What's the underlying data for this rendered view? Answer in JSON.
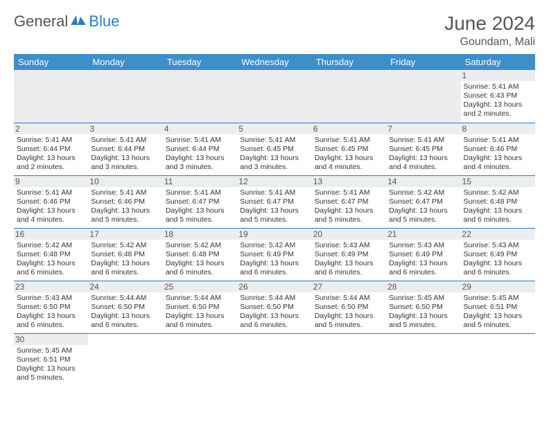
{
  "logo": {
    "general": "General",
    "blue": "Blue"
  },
  "title": "June 2024",
  "location": "Goundam, Mali",
  "colors": {
    "header_bg": "#3d8fc7",
    "header_text": "#ffffff",
    "daynum_bg": "#ecedee",
    "border": "#2d7dc0",
    "title_color": "#555555"
  },
  "weekdays": [
    "Sunday",
    "Monday",
    "Tuesday",
    "Wednesday",
    "Thursday",
    "Friday",
    "Saturday"
  ],
  "days": {
    "1": {
      "sunrise": "5:41 AM",
      "sunset": "6:43 PM",
      "daylight": "13 hours and 2 minutes."
    },
    "2": {
      "sunrise": "5:41 AM",
      "sunset": "6:44 PM",
      "daylight": "13 hours and 2 minutes."
    },
    "3": {
      "sunrise": "5:41 AM",
      "sunset": "6:44 PM",
      "daylight": "13 hours and 3 minutes."
    },
    "4": {
      "sunrise": "5:41 AM",
      "sunset": "6:44 PM",
      "daylight": "13 hours and 3 minutes."
    },
    "5": {
      "sunrise": "5:41 AM",
      "sunset": "6:45 PM",
      "daylight": "13 hours and 3 minutes."
    },
    "6": {
      "sunrise": "5:41 AM",
      "sunset": "6:45 PM",
      "daylight": "13 hours and 4 minutes."
    },
    "7": {
      "sunrise": "5:41 AM",
      "sunset": "6:45 PM",
      "daylight": "13 hours and 4 minutes."
    },
    "8": {
      "sunrise": "5:41 AM",
      "sunset": "6:46 PM",
      "daylight": "13 hours and 4 minutes."
    },
    "9": {
      "sunrise": "5:41 AM",
      "sunset": "6:46 PM",
      "daylight": "13 hours and 4 minutes."
    },
    "10": {
      "sunrise": "5:41 AM",
      "sunset": "6:46 PM",
      "daylight": "13 hours and 5 minutes."
    },
    "11": {
      "sunrise": "5:41 AM",
      "sunset": "6:47 PM",
      "daylight": "13 hours and 5 minutes."
    },
    "12": {
      "sunrise": "5:41 AM",
      "sunset": "6:47 PM",
      "daylight": "13 hours and 5 minutes."
    },
    "13": {
      "sunrise": "5:41 AM",
      "sunset": "6:47 PM",
      "daylight": "13 hours and 5 minutes."
    },
    "14": {
      "sunrise": "5:42 AM",
      "sunset": "6:47 PM",
      "daylight": "13 hours and 5 minutes."
    },
    "15": {
      "sunrise": "5:42 AM",
      "sunset": "6:48 PM",
      "daylight": "13 hours and 6 minutes."
    },
    "16": {
      "sunrise": "5:42 AM",
      "sunset": "6:48 PM",
      "daylight": "13 hours and 6 minutes."
    },
    "17": {
      "sunrise": "5:42 AM",
      "sunset": "6:48 PM",
      "daylight": "13 hours and 6 minutes."
    },
    "18": {
      "sunrise": "5:42 AM",
      "sunset": "6:48 PM",
      "daylight": "13 hours and 6 minutes."
    },
    "19": {
      "sunrise": "5:42 AM",
      "sunset": "6:49 PM",
      "daylight": "13 hours and 6 minutes."
    },
    "20": {
      "sunrise": "5:43 AM",
      "sunset": "6:49 PM",
      "daylight": "13 hours and 6 minutes."
    },
    "21": {
      "sunrise": "5:43 AM",
      "sunset": "6:49 PM",
      "daylight": "13 hours and 6 minutes."
    },
    "22": {
      "sunrise": "5:43 AM",
      "sunset": "6:49 PM",
      "daylight": "13 hours and 6 minutes."
    },
    "23": {
      "sunrise": "5:43 AM",
      "sunset": "6:50 PM",
      "daylight": "13 hours and 6 minutes."
    },
    "24": {
      "sunrise": "5:44 AM",
      "sunset": "6:50 PM",
      "daylight": "13 hours and 6 minutes."
    },
    "25": {
      "sunrise": "5:44 AM",
      "sunset": "6:50 PM",
      "daylight": "13 hours and 6 minutes."
    },
    "26": {
      "sunrise": "5:44 AM",
      "sunset": "6:50 PM",
      "daylight": "13 hours and 6 minutes."
    },
    "27": {
      "sunrise": "5:44 AM",
      "sunset": "6:50 PM",
      "daylight": "13 hours and 5 minutes."
    },
    "28": {
      "sunrise": "5:45 AM",
      "sunset": "6:50 PM",
      "daylight": "13 hours and 5 minutes."
    },
    "29": {
      "sunrise": "5:45 AM",
      "sunset": "6:51 PM",
      "daylight": "13 hours and 5 minutes."
    },
    "30": {
      "sunrise": "5:45 AM",
      "sunset": "6:51 PM",
      "daylight": "13 hours and 5 minutes."
    }
  },
  "labels": {
    "sunrise": "Sunrise: ",
    "sunset": "Sunset: ",
    "daylight": "Daylight: "
  },
  "layout": {
    "first_day_column": 6,
    "total_days": 30
  }
}
